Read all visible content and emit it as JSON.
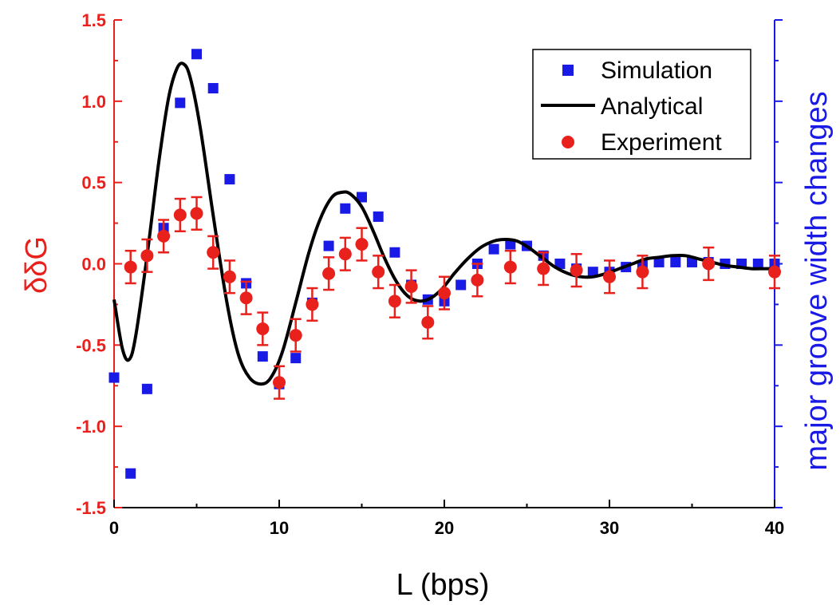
{
  "colors": {
    "left_axis": "#e8211c",
    "right_axis": "#1a1ae6",
    "frame": "#000000",
    "simulation": "#1a1ae6",
    "analytical": "#000000",
    "experiment": "#e8211c"
  },
  "chart_data": {
    "type": "scatter",
    "title": "",
    "xlabel": "L (bps)",
    "ylabel": "δδG",
    "y2label": "major groove width changes",
    "xlim": [
      0,
      40
    ],
    "ylim": [
      -1.5,
      1.5
    ],
    "x_ticks": [
      "0",
      "10",
      "20",
      "30",
      "40"
    ],
    "y_ticks": [
      "-1.5",
      "-1.0",
      "-0.5",
      "0.0",
      "0.5",
      "1.0",
      "1.5"
    ],
    "legend_position": "top-right",
    "series": [
      {
        "name": "Simulation",
        "kind": "square-markers",
        "axis": "right",
        "points": [
          [
            0,
            -0.7
          ],
          [
            1,
            -1.29
          ],
          [
            2,
            -0.77
          ],
          [
            3,
            0.22
          ],
          [
            4,
            0.99
          ],
          [
            5,
            1.29
          ],
          [
            6,
            1.08
          ],
          [
            7,
            0.52
          ],
          [
            8,
            -0.12
          ],
          [
            9,
            -0.57
          ],
          [
            10,
            -0.74
          ],
          [
            11,
            -0.58
          ],
          [
            12,
            -0.24
          ],
          [
            13,
            0.11
          ],
          [
            14,
            0.34
          ],
          [
            15,
            0.41
          ],
          [
            16,
            0.29
          ],
          [
            17,
            0.07
          ],
          [
            18,
            -0.13
          ],
          [
            19,
            -0.22
          ],
          [
            20,
            -0.23
          ],
          [
            21,
            -0.13
          ],
          [
            22,
            0.0
          ],
          [
            23,
            0.09
          ],
          [
            24,
            0.12
          ],
          [
            25,
            0.11
          ],
          [
            26,
            0.05
          ],
          [
            27,
            0.0
          ],
          [
            28,
            -0.03
          ],
          [
            29,
            -0.05
          ],
          [
            30,
            -0.05
          ],
          [
            31,
            -0.02
          ],
          [
            32,
            -0.01
          ],
          [
            33,
            0.01
          ],
          [
            34,
            0.01
          ],
          [
            35,
            0.01
          ],
          [
            36,
            0.01
          ],
          [
            37,
            0.0
          ],
          [
            38,
            0.0
          ],
          [
            39,
            0.0
          ],
          [
            40,
            0.0
          ]
        ]
      },
      {
        "name": "Analytical",
        "kind": "line",
        "axis": "left",
        "points": [
          [
            0,
            -0.22
          ],
          [
            0.5,
            -0.52
          ],
          [
            0.9,
            -0.59
          ],
          [
            1.3,
            -0.45
          ],
          [
            2.0,
            0.05
          ],
          [
            2.7,
            0.62
          ],
          [
            3.3,
            1.02
          ],
          [
            3.8,
            1.2
          ],
          [
            4.2,
            1.23
          ],
          [
            4.6,
            1.15
          ],
          [
            5.2,
            0.85
          ],
          [
            6.0,
            0.3
          ],
          [
            6.8,
            -0.22
          ],
          [
            7.5,
            -0.55
          ],
          [
            8.2,
            -0.7
          ],
          [
            8.9,
            -0.74
          ],
          [
            9.5,
            -0.7
          ],
          [
            10.2,
            -0.54
          ],
          [
            11.0,
            -0.24
          ],
          [
            11.8,
            0.07
          ],
          [
            12.5,
            0.28
          ],
          [
            13.2,
            0.41
          ],
          [
            13.8,
            0.44
          ],
          [
            14.3,
            0.43
          ],
          [
            15.0,
            0.35
          ],
          [
            15.7,
            0.2
          ],
          [
            16.4,
            0.03
          ],
          [
            17.1,
            -0.11
          ],
          [
            17.8,
            -0.2
          ],
          [
            18.5,
            -0.23
          ],
          [
            19.2,
            -0.21
          ],
          [
            19.9,
            -0.15
          ],
          [
            20.6,
            -0.06
          ],
          [
            21.4,
            0.03
          ],
          [
            22.2,
            0.1
          ],
          [
            23.0,
            0.14
          ],
          [
            23.7,
            0.15
          ],
          [
            24.4,
            0.14
          ],
          [
            25.1,
            0.1
          ],
          [
            25.9,
            0.04
          ],
          [
            26.7,
            -0.02
          ],
          [
            27.5,
            -0.06
          ],
          [
            28.3,
            -0.08
          ],
          [
            29.0,
            -0.08
          ],
          [
            29.8,
            -0.06
          ],
          [
            30.6,
            -0.03
          ],
          [
            31.4,
            0.0
          ],
          [
            32.2,
            0.03
          ],
          [
            33.0,
            0.04
          ],
          [
            33.8,
            0.05
          ],
          [
            34.6,
            0.05
          ],
          [
            35.4,
            0.03
          ],
          [
            36.2,
            0.01
          ],
          [
            37.0,
            -0.01
          ],
          [
            37.8,
            -0.02
          ],
          [
            38.6,
            -0.03
          ],
          [
            39.4,
            -0.03
          ],
          [
            40.0,
            -0.03
          ]
        ]
      },
      {
        "name": "Experiment",
        "kind": "circle-markers-with-error-bars",
        "axis": "left",
        "points": [
          [
            1,
            -0.02,
            0.1
          ],
          [
            2,
            0.05,
            0.1
          ],
          [
            3,
            0.17,
            0.1
          ],
          [
            4,
            0.3,
            0.1
          ],
          [
            5,
            0.31,
            0.1
          ],
          [
            6,
            0.07,
            0.1
          ],
          [
            7,
            -0.08,
            0.1
          ],
          [
            8,
            -0.21,
            0.1
          ],
          [
            9,
            -0.4,
            0.1
          ],
          [
            10,
            -0.73,
            0.1
          ],
          [
            11,
            -0.44,
            0.1
          ],
          [
            12,
            -0.25,
            0.1
          ],
          [
            13,
            -0.06,
            0.1
          ],
          [
            14,
            0.06,
            0.1
          ],
          [
            15,
            0.12,
            0.1
          ],
          [
            16,
            -0.05,
            0.1
          ],
          [
            17,
            -0.23,
            0.1
          ],
          [
            18,
            -0.14,
            0.1
          ],
          [
            19,
            -0.36,
            0.1
          ],
          [
            20,
            -0.18,
            0.1
          ],
          [
            22,
            -0.1,
            0.1
          ],
          [
            24,
            -0.02,
            0.1
          ],
          [
            26,
            -0.03,
            0.1
          ],
          [
            28,
            -0.04,
            0.1
          ],
          [
            30,
            -0.08,
            0.1
          ],
          [
            32,
            -0.05,
            0.1
          ],
          [
            36,
            0.0,
            0.1
          ],
          [
            40,
            -0.05,
            0.1
          ]
        ]
      }
    ]
  }
}
